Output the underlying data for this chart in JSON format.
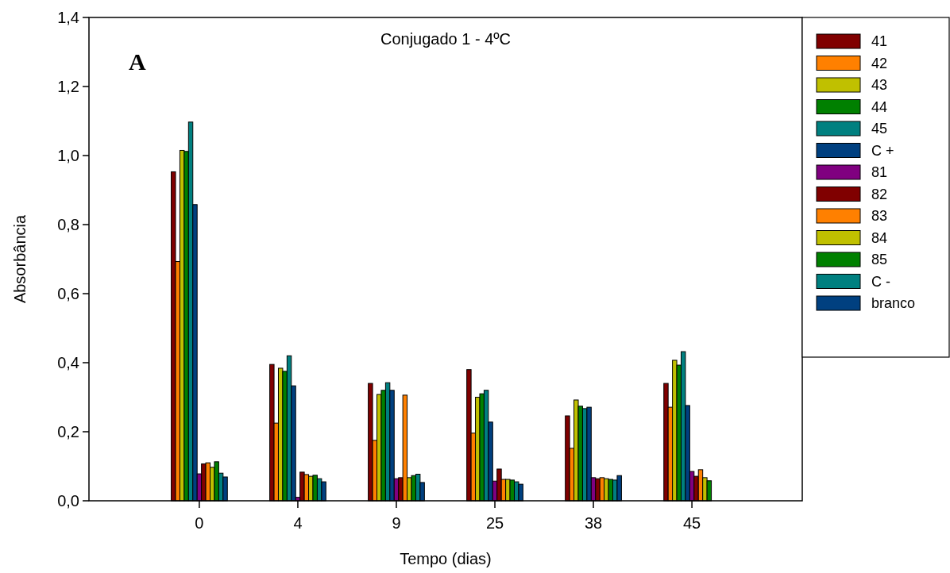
{
  "chart_data": {
    "type": "bar",
    "title": "Conjugado 1  -  4ºC",
    "xlabel": "Tempo (dias)",
    "ylabel": "Absorbância",
    "annotations": [
      "A"
    ],
    "categories": [
      "0",
      "4",
      "9",
      "25",
      "38",
      "45"
    ],
    "ylim": [
      0,
      1.4
    ],
    "yticks": [
      {
        "value": 0,
        "label": "0,0"
      },
      {
        "value": 0.2,
        "label": "0,2"
      },
      {
        "value": 0.4,
        "label": "0,4"
      },
      {
        "value": 0.6,
        "label": "0,6"
      },
      {
        "value": 0.8,
        "label": "0,8"
      },
      {
        "value": 1.0,
        "label": "1,0"
      },
      {
        "value": 1.2,
        "label": "1,2"
      },
      {
        "value": 1.4,
        "label": "1,4"
      }
    ],
    "grid": false,
    "legend": "right",
    "series": [
      {
        "name": "41",
        "color": "#800000",
        "values": [
          0.953,
          0.395,
          0.34,
          0.38,
          0.246,
          0.34
        ]
      },
      {
        "name": "42",
        "color": "#ff8000",
        "values": [
          0.693,
          0.225,
          0.175,
          0.196,
          0.152,
          0.271
        ]
      },
      {
        "name": "43",
        "color": "#c0c000",
        "values": [
          1.015,
          0.384,
          0.308,
          0.3,
          0.292,
          0.407
        ]
      },
      {
        "name": "44",
        "color": "#008000",
        "values": [
          1.012,
          0.375,
          0.32,
          0.31,
          0.274,
          0.393
        ]
      },
      {
        "name": "45",
        "color": "#008080",
        "values": [
          1.097,
          0.42,
          0.342,
          0.32,
          0.267,
          0.432
        ]
      },
      {
        "name": "C +",
        "color": "#004080",
        "values": [
          0.858,
          0.333,
          0.32,
          0.228,
          0.271,
          0.276
        ]
      },
      {
        "name": "81",
        "color": "#800080",
        "values": [
          0.078,
          0.01,
          0.064,
          0.057,
          0.067,
          0.085
        ]
      },
      {
        "name": "82",
        "color": "#800000",
        "values": [
          0.107,
          0.083,
          0.067,
          0.092,
          0.064,
          0.071
        ]
      },
      {
        "name": "83",
        "color": "#ff8000",
        "values": [
          0.11,
          0.076,
          0.306,
          0.062,
          0.067,
          0.09
        ]
      },
      {
        "name": "84",
        "color": "#c0c000",
        "values": [
          0.097,
          0.071,
          0.067,
          0.062,
          0.064,
          0.067
        ]
      },
      {
        "name": "85",
        "color": "#008000",
        "values": [
          0.113,
          0.074,
          0.073,
          0.06,
          0.062,
          0.058
        ]
      },
      {
        "name": "C -",
        "color": "#008080",
        "values": [
          0.08,
          0.064,
          0.077,
          0.055,
          0.06,
          null
        ]
      },
      {
        "name": "branco",
        "color": "#004080",
        "values": [
          0.069,
          0.055,
          0.053,
          0.048,
          0.073,
          null
        ]
      }
    ]
  }
}
